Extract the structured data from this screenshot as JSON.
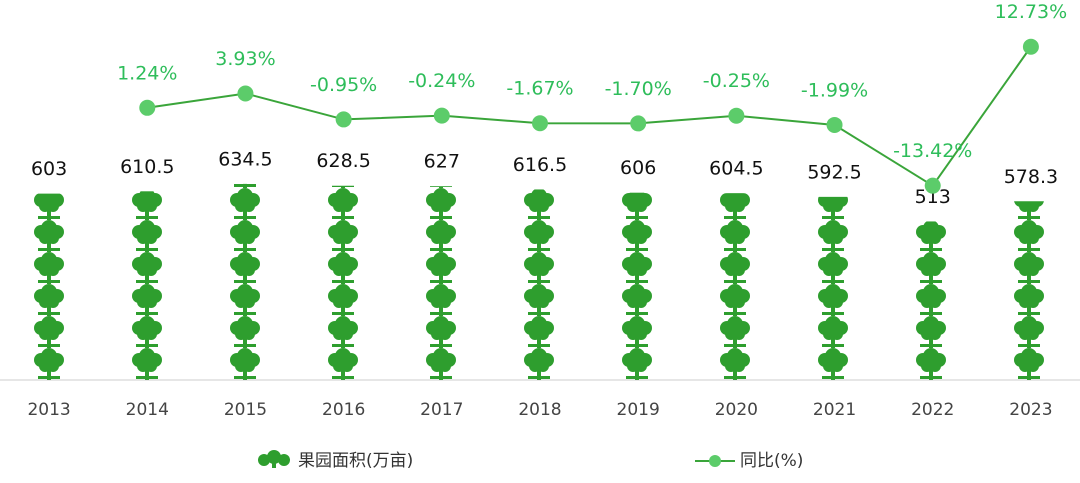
{
  "chart_data": {
    "type": "bar",
    "categories": [
      "2013",
      "2014",
      "2015",
      "2016",
      "2017",
      "2018",
      "2019",
      "2020",
      "2021",
      "2022",
      "2023"
    ],
    "ylim": [
      0,
      1100
    ],
    "y2lim": [
      -50,
      14
    ],
    "legend": "bottom",
    "series": [
      {
        "name": "果园面积(万亩)",
        "type": "bar",
        "color": "#2e9e2e",
        "values": [
          603,
          610.5,
          634.5,
          628.5,
          627,
          616.5,
          606,
          604.5,
          592.5,
          513,
          578.3
        ]
      },
      {
        "name": "同比(%)",
        "type": "line",
        "axis": "y2",
        "color": "#3aa53a",
        "marker_color": "#5ccc6a",
        "label_color": "#2ebd5a",
        "values": [
          null,
          1.24,
          3.93,
          -0.95,
          -0.24,
          -1.67,
          -1.7,
          -0.25,
          -1.99,
          -13.42,
          12.73
        ],
        "value_labels": [
          null,
          "1.24%",
          "3.93%",
          "-0.95%",
          "-0.24%",
          "-1.67%",
          "-1.70%",
          "-0.25%",
          "-1.99%",
          "-13.42%",
          "12.73%"
        ]
      }
    ]
  }
}
